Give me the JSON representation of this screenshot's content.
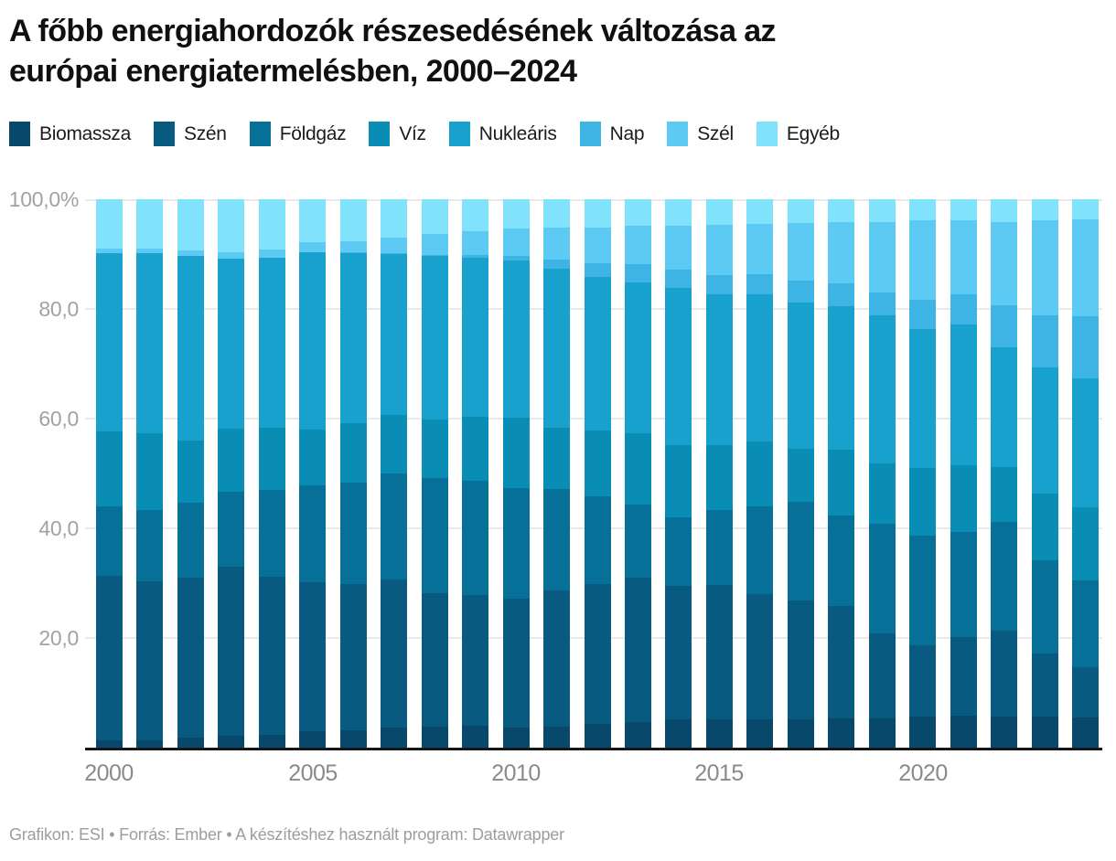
{
  "title": {
    "line1": "A főbb energiahordozók részesedésének változása az",
    "line2": "európai energiatermelésben, 2000–2024"
  },
  "axes": {
    "y_ticks": [
      "100,0%",
      "80,0",
      "60,0",
      "40,0",
      "20,0"
    ],
    "x_ticks": [
      "2000",
      "2005",
      "2010",
      "2015",
      "2020"
    ]
  },
  "footer": {
    "text": "Grafikon: ESI • Forrás: Ember • A készítéshez használt program: Datawrapper"
  },
  "chart_data": {
    "type": "bar",
    "variant": "stacked-100-percent-column",
    "title": "A főbb energiahordozók részesedésének változása az európai energiatermelésben, 2000–2024",
    "unit": "%",
    "ylim": [
      0,
      100
    ],
    "grid": true,
    "legend_position": "top",
    "xlabel": "",
    "ylabel": "",
    "categories": [
      2000,
      2001,
      2002,
      2003,
      2004,
      2005,
      2006,
      2007,
      2008,
      2009,
      2010,
      2011,
      2012,
      2013,
      2014,
      2015,
      2016,
      2017,
      2018,
      2019,
      2020,
      2021,
      2022,
      2023,
      2024
    ],
    "stack_order": "bottom-to-top",
    "series": [
      {
        "name": "Biomassza",
        "color": "#07486b",
        "values": [
          1.4,
          1.4,
          1.8,
          2.2,
          2.4,
          3.0,
          3.1,
          3.6,
          3.8,
          4.0,
          3.7,
          3.8,
          4.3,
          4.7,
          5.1,
          5.2,
          5.1,
          5.2,
          5.3,
          5.4,
          5.7,
          5.8,
          5.7,
          5.7,
          5.5
        ]
      },
      {
        "name": "Szén",
        "color": "#095a80",
        "values": [
          29.9,
          28.9,
          29.2,
          30.8,
          28.7,
          27.1,
          26.7,
          27.0,
          24.3,
          23.9,
          23.5,
          24.9,
          25.6,
          26.3,
          24.4,
          24.5,
          22.9,
          21.7,
          20.5,
          15.5,
          12.9,
          14.4,
          15.7,
          11.5,
          9.2
        ]
      },
      {
        "name": "Földgáz",
        "color": "#077098",
        "values": [
          12.7,
          13.1,
          13.7,
          13.6,
          15.9,
          17.7,
          18.6,
          19.4,
          21.0,
          20.8,
          20.1,
          18.4,
          15.9,
          13.4,
          12.5,
          13.6,
          16.0,
          18.0,
          16.6,
          20.0,
          20.1,
          19.2,
          19.8,
          17.0,
          15.8
        ]
      },
      {
        "name": "Víz",
        "color": "#098db4",
        "values": [
          13.7,
          14.0,
          11.3,
          11.5,
          11.3,
          10.2,
          10.8,
          10.6,
          10.8,
          11.6,
          12.9,
          11.2,
          12.0,
          13.0,
          13.1,
          11.8,
          11.9,
          9.6,
          12.0,
          11.0,
          12.3,
          12.1,
          9.9,
          12.1,
          13.3
        ]
      },
      {
        "name": "Nukleáris",
        "color": "#17a1cc",
        "values": [
          32.5,
          32.7,
          33.6,
          31.0,
          31.0,
          32.4,
          31.0,
          29.5,
          29.8,
          29.1,
          28.7,
          29.0,
          28.1,
          27.5,
          28.8,
          27.5,
          26.7,
          26.7,
          26.1,
          26.9,
          25.3,
          25.6,
          21.9,
          23.1,
          23.6
        ]
      },
      {
        "name": "Nap",
        "color": "#3eb4e4",
        "values": [
          0.0,
          0.0,
          0.0,
          0.0,
          0.0,
          0.0,
          0.1,
          0.1,
          0.2,
          0.4,
          0.7,
          1.7,
          2.5,
          3.2,
          3.3,
          3.6,
          3.7,
          4.0,
          4.2,
          4.2,
          5.3,
          5.5,
          7.6,
          9.4,
          11.2
        ]
      },
      {
        "name": "Szél",
        "color": "#5ccaf3",
        "values": [
          0.8,
          0.9,
          1.1,
          1.3,
          1.5,
          1.8,
          2.0,
          2.8,
          3.7,
          4.4,
          5.0,
          5.8,
          6.5,
          7.0,
          8.0,
          9.1,
          9.2,
          10.4,
          11.1,
          12.9,
          14.6,
          13.5,
          15.3,
          17.4,
          17.7
        ]
      },
      {
        "name": "Egyéb",
        "color": "#80e2fb",
        "values": [
          9.0,
          9.0,
          9.3,
          9.6,
          9.2,
          7.8,
          7.7,
          7.0,
          6.4,
          5.8,
          5.4,
          5.2,
          5.1,
          4.9,
          4.8,
          4.7,
          4.5,
          4.4,
          4.2,
          4.1,
          3.8,
          3.9,
          4.1,
          3.8,
          3.7
        ]
      }
    ]
  }
}
